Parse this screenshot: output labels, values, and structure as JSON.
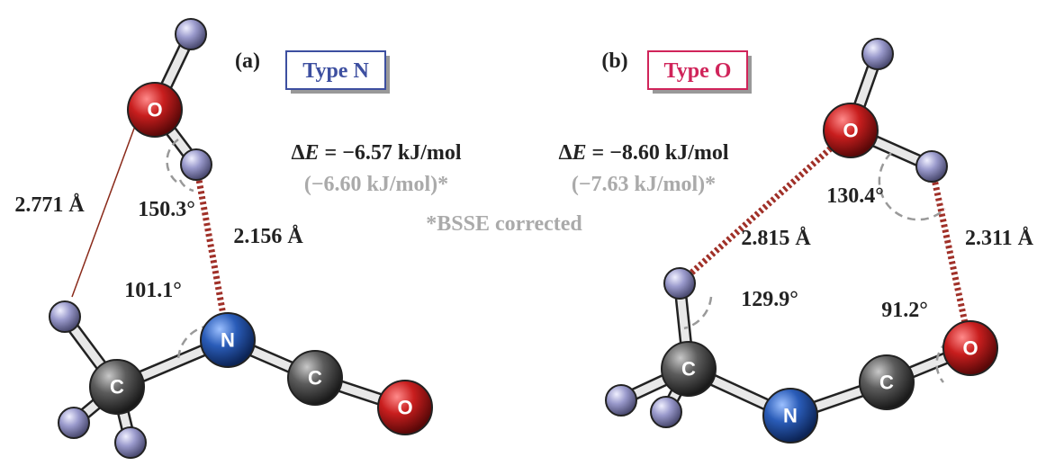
{
  "panels": [
    {
      "label": "(a)",
      "type": "Type N",
      "energy_prefix": "Δ",
      "energy_var": "E",
      "energy": " = −6.57 kJ/mol",
      "corrected": "(−6.60 kJ/mol)*",
      "distances": [
        "2.771 Å",
        "2.156 Å"
      ],
      "angles": [
        "150.3°",
        "101.1°"
      ],
      "atoms": [
        "O",
        "C",
        "N",
        "C",
        "O"
      ]
    },
    {
      "label": "(b)",
      "type": "Type O",
      "energy_prefix": "Δ",
      "energy_var": "E",
      "energy": " = −8.60 kJ/mol",
      "corrected": "(−7.63 kJ/mol)*",
      "distances": [
        "2.815 Å",
        "2.311 Å"
      ],
      "angles": [
        "130.4°",
        "129.9°",
        "91.2°"
      ],
      "atoms": [
        "O",
        "C",
        "N",
        "C",
        "O"
      ]
    }
  ],
  "footnote": "*BSSE corrected"
}
